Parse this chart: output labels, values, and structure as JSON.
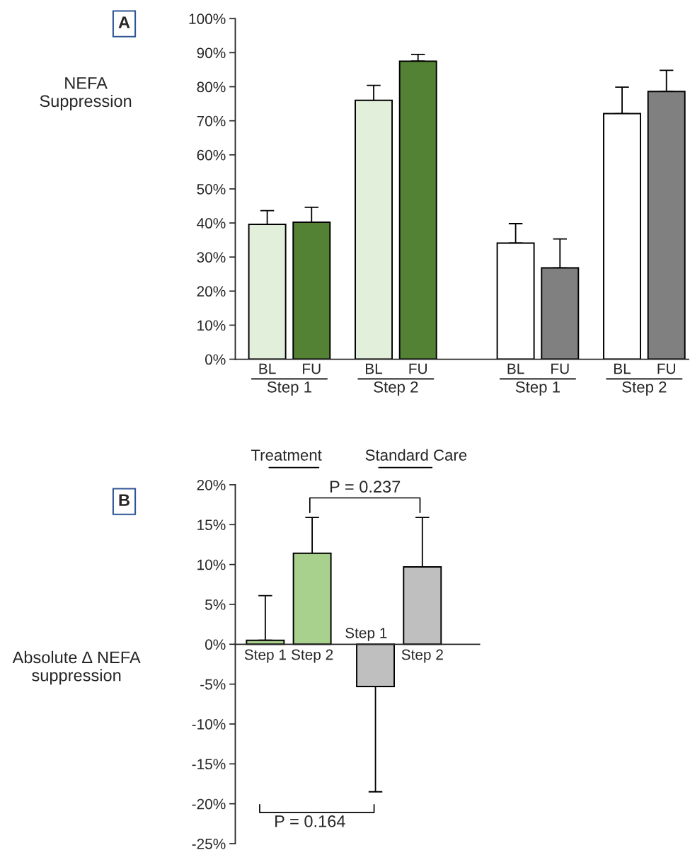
{
  "chart_data": [
    {
      "type": "bar",
      "ylabel": "NEFA\nSuppression",
      "categories": [
        "BL",
        "FU",
        "BL",
        "FU",
        "BL",
        "FU",
        "BL",
        "FU"
      ],
      "values": [
        39.6,
        40.2,
        76.0,
        87.5,
        34.1,
        26.8,
        72.1,
        78.6
      ],
      "colors": [
        "#e2efda",
        "#548235",
        "#e2efda",
        "#548235",
        "#ffffff",
        "#808080",
        "#ffffff",
        "#808080"
      ],
      "errors": [
        [
          39.6,
          43.6
        ],
        [
          40.2,
          44.6
        ],
        [
          76.0,
          80.4
        ],
        [
          87.5,
          89.5
        ],
        [
          34.1,
          39.8
        ],
        [
          26.8,
          35.3
        ],
        [
          72.1,
          79.9
        ],
        [
          78.6,
          84.8
        ]
      ],
      "ylim": [
        0,
        100
      ],
      "yticks": [
        {
          "value": 0,
          "label": "0%"
        },
        {
          "value": 10,
          "label": "10%"
        },
        {
          "value": 20,
          "label": "20%"
        },
        {
          "value": 30,
          "label": "30%"
        },
        {
          "value": 40,
          "label": "40%"
        },
        {
          "value": 50,
          "label": "50%"
        },
        {
          "value": 60,
          "label": "60%"
        },
        {
          "value": 70,
          "label": "70%"
        },
        {
          "value": 80,
          "label": "80%"
        },
        {
          "value": 90,
          "label": "90%"
        },
        {
          "value": 100,
          "label": "100%"
        }
      ],
      "grid": false,
      "annotations": [
        "A",
        "Step 1",
        "Step 2",
        "Step 1",
        "Step 2",
        "Treatment",
        "Standard Care"
      ]
    },
    {
      "type": "bar",
      "ylabel": "Absolute ∆ NEFA\nsuppression",
      "categories": [
        "Step 1",
        "Step 2",
        "Step 1",
        "Step 2"
      ],
      "values": [
        0.5,
        11.4,
        -5.3,
        9.7
      ],
      "colors": [
        "#a9d18e",
        "#a9d18e",
        "#bfbfbf",
        "#bfbfbf"
      ],
      "errors": [
        [
          0.5,
          6.1
        ],
        [
          11.4,
          15.9
        ],
        [
          -18.5,
          -5.3
        ],
        [
          9.7,
          15.9
        ]
      ],
      "ylim": [
        -25,
        20
      ],
      "yticks": [
        {
          "value": -25,
          "label": "-25%"
        },
        {
          "value": -20,
          "label": "-20%"
        },
        {
          "value": -15,
          "label": "-15%"
        },
        {
          "value": -10,
          "label": "-10%"
        },
        {
          "value": -5,
          "label": "-5%"
        },
        {
          "value": 0,
          "label": "0%"
        },
        {
          "value": 5,
          "label": "5%"
        },
        {
          "value": 10,
          "label": "10%"
        },
        {
          "value": 15,
          "label": "15%"
        },
        {
          "value": 20,
          "label": "20%"
        }
      ],
      "grid": false,
      "annotations": [
        "B",
        "P = 0.237",
        "P = 0.164"
      ]
    }
  ]
}
